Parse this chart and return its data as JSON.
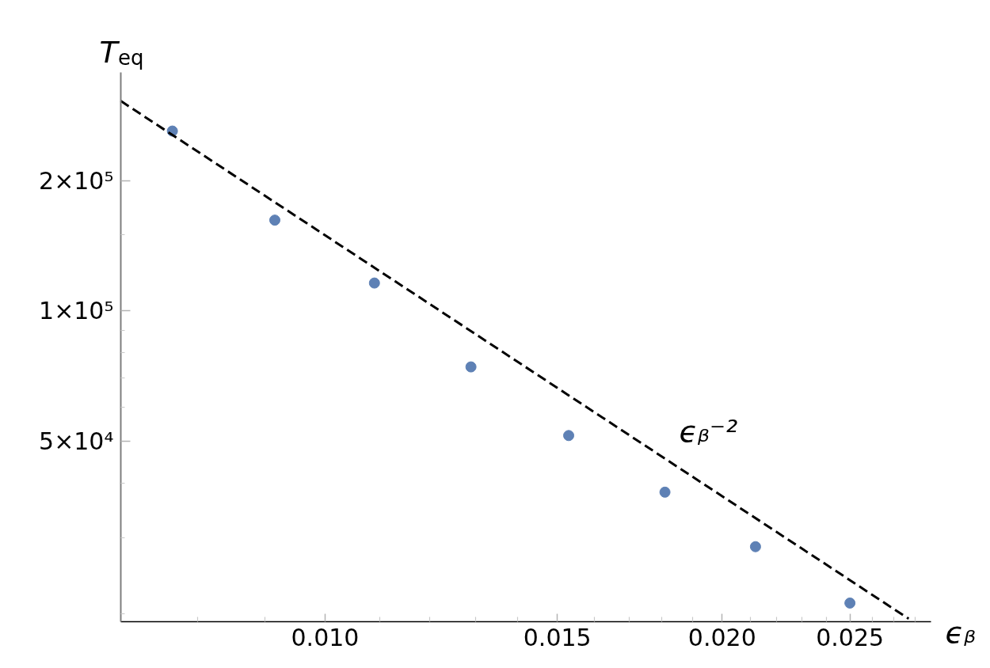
{
  "chart_data": {
    "type": "scatter",
    "xlabel": "ϵᵦ",
    "ylabel": "T$_{eq}$",
    "log": "xy",
    "xlim": [
      0.007,
      0.0288
    ],
    "ylim": [
      19200,
      355000
    ],
    "xticks": [
      {
        "value": 0.008,
        "label": null
      },
      {
        "value": 0.009,
        "label": null
      },
      {
        "value": 0.01,
        "label": "0.010"
      },
      {
        "value": 0.011,
        "label": null
      },
      {
        "value": 0.012,
        "label": null
      },
      {
        "value": 0.013,
        "label": null
      },
      {
        "value": 0.014,
        "label": null
      },
      0.015,
      {
        "value": 0.016,
        "label": null
      },
      {
        "value": 0.017,
        "label": null
      },
      {
        "value": 0.018,
        "label": null
      },
      {
        "value": 0.019,
        "label": null
      },
      {
        "value": 0.02,
        "label": "0.020"
      },
      {
        "value": 0.021,
        "label": null
      },
      {
        "value": 0.022,
        "label": null
      },
      {
        "value": 0.023,
        "label": null
      },
      {
        "value": 0.024,
        "label": null
      },
      0.025,
      {
        "value": 0.026,
        "label": null
      },
      {
        "value": 0.027,
        "label": null
      },
      {
        "value": 0.028,
        "label": null
      }
    ],
    "yticks": [
      {
        "value": 20000,
        "label": null
      },
      {
        "value": 30000,
        "label": null
      },
      {
        "value": 40000,
        "label": null
      },
      {
        "value": 50000,
        "label": "5×10⁴"
      },
      {
        "value": 60000,
        "label": null
      },
      {
        "value": 70000,
        "label": null
      },
      {
        "value": 80000,
        "label": null
      },
      {
        "value": 90000,
        "label": null
      },
      {
        "value": 100000,
        "label": "1×10⁵"
      },
      {
        "value": 150000,
        "label": null
      },
      {
        "value": 200000,
        "label": "2×10⁵"
      }
    ],
    "series": [
      {
        "color": "#5e81b5",
        "marker": "circle",
        "x": [
          0.00766,
          0.00916,
          0.0109,
          0.0129,
          0.0153,
          0.0181,
          0.0212,
          0.025
        ],
        "values": [
          260000,
          162000,
          116000,
          74300,
          51600,
          38200,
          28600,
          21200
        ]
      },
      {
        "type": "line",
        "color": "#000000",
        "line_style": "dashed",
        "marker": "none",
        "x": [
          0.007,
          0.0277
        ],
        "values": [
          305000,
          19500
        ]
      }
    ],
    "annotations": [
      {
        "text": "ϵᵦ⁻²",
        "x": 0.0185,
        "y": 43700
      }
    ]
  }
}
